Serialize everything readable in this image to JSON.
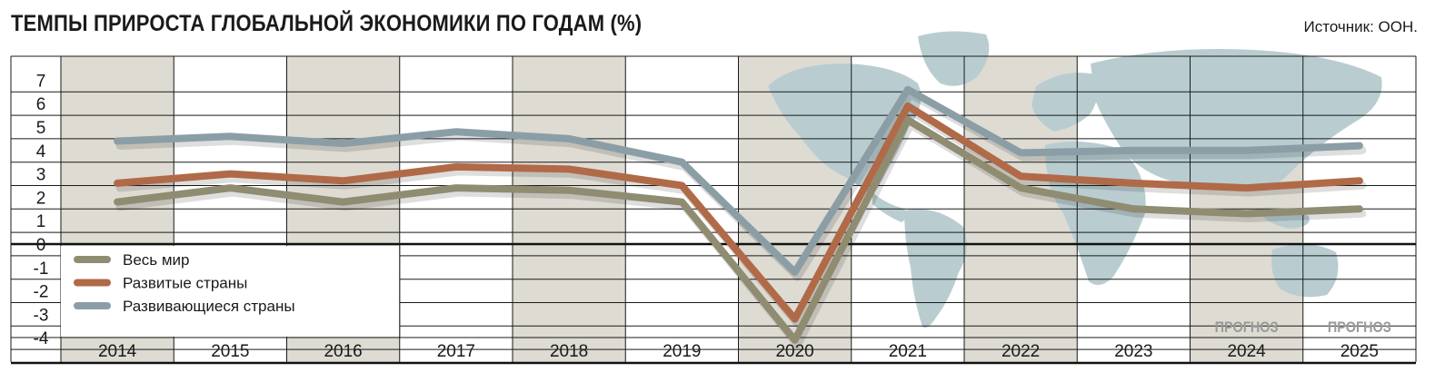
{
  "header": {
    "title": "ТЕМПЫ ПРИРОСТА ГЛОБАЛЬНОЙ ЭКОНОМИКИ ПО ГОДАМ (%)",
    "source": "Источник: ООН."
  },
  "colors": {
    "world": "#8f8c72",
    "developed": "#b06a48",
    "developing": "#8b9ea6",
    "shaded_column": "#dedbd3",
    "map": "#b9cdd1",
    "forecast_label": "#9a9a9a",
    "grid": "#1a1a1a"
  },
  "icons": {
    "background": "world-map-icon"
  },
  "chart_data": {
    "type": "line",
    "categories": [
      "2014",
      "2015",
      "2016",
      "2017",
      "2018",
      "2019",
      "2020",
      "2021",
      "2022",
      "2023",
      "2024",
      "2025"
    ],
    "yticks": [
      "7",
      "6",
      "5",
      "4",
      "3",
      "2",
      "1",
      "0",
      "-1",
      "-2",
      "-3",
      "-4"
    ],
    "ylim": [
      -4.5,
      7.5
    ],
    "grid": true,
    "shaded_years": [
      "2014",
      "2016",
      "2018",
      "2020",
      "2022",
      "2024"
    ],
    "forecast_label": "ПРОГНОЗ",
    "forecast_years": [
      "2024",
      "2025"
    ],
    "legend_position": "bottom-left",
    "series": [
      {
        "name": "Весь мир",
        "key": "world",
        "values": [
          1.8,
          2.4,
          1.8,
          2.4,
          2.3,
          1.8,
          -4.1,
          5.3,
          2.4,
          1.5,
          1.3,
          1.5
        ]
      },
      {
        "name": "Развитые страны",
        "key": "developed",
        "values": [
          2.6,
          3.0,
          2.7,
          3.3,
          3.2,
          2.5,
          -3.2,
          5.9,
          2.9,
          2.6,
          2.4,
          2.7
        ]
      },
      {
        "name": "Развивающиеся страны",
        "key": "developing",
        "values": [
          4.4,
          4.6,
          4.3,
          4.8,
          4.5,
          3.5,
          -1.2,
          6.6,
          3.9,
          4.0,
          4.0,
          4.2
        ]
      }
    ]
  }
}
